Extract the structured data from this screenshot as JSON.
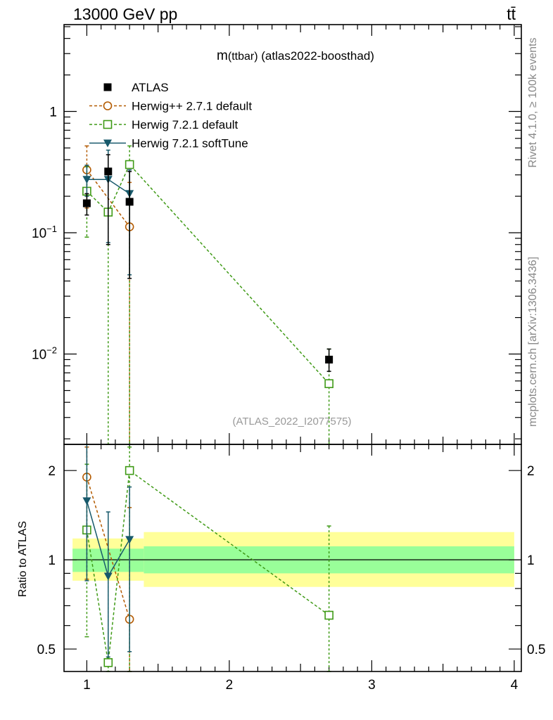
{
  "header": {
    "left": "13000 GeV pp",
    "right": "tt̄"
  },
  "side_labels": {
    "rivet": "Rivet 4.1.0, ≥ 100k events",
    "mcplots": "mcplots.cern.ch [arXiv:1306.3436]"
  },
  "chart_data": {
    "type": "scatter",
    "title": "m(ttbar) (atlas2022-boosthad)",
    "title_main": "m",
    "title_paren": "(ttbar)",
    "title_rest": " (atlas2022-boosthad)",
    "watermark": "(ATLAS_2022_I2077575)",
    "xlabel": "",
    "ylabel_main": "",
    "ylabel_ratio": "Ratio to ATLAS",
    "xlim": [
      0.84,
      4.05
    ],
    "ylim_main": [
      0.0018,
      5.2
    ],
    "ylim_ratio": [
      0.42,
      2.45
    ],
    "yscale": "log",
    "x_ticks": [
      "1",
      "2",
      "3",
      "4"
    ],
    "x_tick_values": [
      1,
      2,
      3,
      4
    ],
    "y_ticks_main": [
      {
        "value": 1,
        "base": "1",
        "exp": ""
      },
      {
        "value": 0.1,
        "base": "10",
        "exp": "−1"
      },
      {
        "value": 0.01,
        "base": "10",
        "exp": "−2"
      }
    ],
    "y_ticks_ratio": [
      {
        "value": 2,
        "label": "2"
      },
      {
        "value": 1,
        "label": "1"
      },
      {
        "value": 0.5,
        "label": "0.5"
      }
    ],
    "bands": [
      {
        "x0": 0.9,
        "x1": 1.4,
        "yellow": [
          0.85,
          1.18
        ],
        "green": [
          0.91,
          1.09
        ]
      },
      {
        "x0": 1.4,
        "x1": 4.0,
        "yellow": [
          0.81,
          1.24
        ],
        "green": [
          0.9,
          1.11
        ]
      }
    ],
    "legend": [
      {
        "label": "ATLAS",
        "color": "#000000",
        "marker": "square-filled",
        "line": "none"
      },
      {
        "label": "Herwig++ 2.7.1 default",
        "color": "#b35a00",
        "marker": "circle-open",
        "line": "dashed"
      },
      {
        "label": "Herwig 7.2.1 default",
        "color": "#3f9a16",
        "marker": "square-open",
        "line": "dashed"
      },
      {
        "label": "Herwig 7.2.1 softTune",
        "color": "#17596b",
        "marker": "triangle-down",
        "line": "solid"
      }
    ],
    "series": [
      {
        "name": "ATLAS",
        "color": "#000000",
        "x": [
          1.0,
          1.15,
          1.3,
          2.7
        ],
        "values": [
          0.175,
          0.32,
          0.18,
          0.009
        ],
        "err_lo": [
          0.14,
          0.08,
          0.042,
          0.0072
        ],
        "err_hi": [
          0.21,
          0.44,
          0.32,
          0.011
        ]
      },
      {
        "name": "Herwig++ 2.7.1 default",
        "color": "#b35a00",
        "x": [
          1.0,
          1.3
        ],
        "values": [
          0.33,
          0.112
        ],
        "err_lo": [
          0.16,
          0.0012
        ],
        "err_hi": [
          0.52,
          0.26
        ],
        "ratio": [
          1.9,
          0.63
        ],
        "ratio_lo": [
          0.86,
          0.4
        ],
        "ratio_hi": [
          2.4,
          1.5
        ]
      },
      {
        "name": "Herwig 7.2.1 default",
        "color": "#3f9a16",
        "x": [
          1.0,
          1.15,
          1.3,
          2.7
        ],
        "values": [
          0.22,
          0.148,
          0.365,
          0.0057
        ],
        "err_lo": [
          0.092,
          0.0012,
          0.0012,
          0.0012
        ],
        "err_hi": [
          0.35,
          0.29,
          0.52,
          0.011
        ],
        "ratio": [
          1.26,
          0.45,
          2.0,
          0.65
        ],
        "ratio_lo": [
          0.55,
          0.4,
          0.4,
          0.4
        ],
        "ratio_hi": [
          2.1,
          0.9,
          2.4,
          1.3
        ]
      },
      {
        "name": "Herwig 7.2.1 softTune",
        "color": "#17596b",
        "x": [
          1.0,
          1.15,
          1.3
        ],
        "values": [
          0.275,
          0.275,
          0.21
        ],
        "err_lo": [
          0.2,
          0.083,
          0.045
        ],
        "err_hi": [
          0.36,
          0.48,
          0.33
        ],
        "ratio": [
          1.58,
          0.88,
          1.17
        ],
        "ratio_lo": [
          0.85,
          0.47,
          0.49
        ],
        "ratio_hi": [
          2.45,
          1.45,
          1.76
        ]
      }
    ]
  }
}
